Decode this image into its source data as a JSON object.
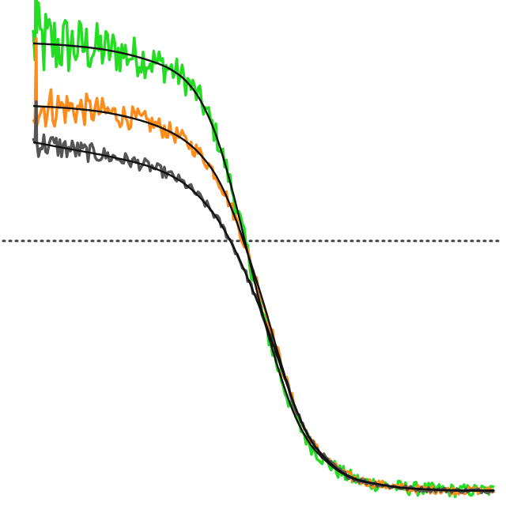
{
  "chart_data": {
    "type": "line",
    "x_scale": "log",
    "xlim": [
      -3,
      3
    ],
    "ylim": [
      -0.05,
      1.0
    ],
    "grid": false,
    "axes_visible": false,
    "reference_line": {
      "y": 0.5,
      "style": "dotted",
      "color": "#444444"
    },
    "series": [
      {
        "color": "#22dd22",
        "fit_color": "#111111",
        "noise": 0.035,
        "x": [
          -3.0,
          -2.5,
          -2.0,
          -1.5,
          -1.2,
          -1.0,
          -0.8,
          -0.6,
          -0.4,
          -0.2,
          0.0,
          0.2,
          0.4,
          0.6,
          0.8,
          1.0,
          1.2,
          1.5,
          1.8,
          2.2,
          2.6,
          3.0
        ],
        "y": [
          0.91,
          0.905,
          0.895,
          0.875,
          0.855,
          0.83,
          0.785,
          0.71,
          0.6,
          0.47,
          0.34,
          0.23,
          0.14,
          0.08,
          0.045,
          0.02,
          0.005,
          -0.005,
          -0.012,
          -0.016,
          -0.018,
          -0.018
        ]
      },
      {
        "color": "#ff8c1a",
        "fit_color": "#111111",
        "noise": 0.02,
        "x": [
          -3.0,
          -2.5,
          -2.0,
          -1.5,
          -1.2,
          -1.0,
          -0.8,
          -0.6,
          -0.4,
          -0.2,
          0.0,
          0.2,
          0.4,
          0.6,
          0.8,
          1.0,
          1.2,
          1.5,
          1.8,
          2.2,
          2.6,
          3.0
        ],
        "y": [
          0.78,
          0.775,
          0.765,
          0.745,
          0.725,
          0.705,
          0.675,
          0.63,
          0.56,
          0.47,
          0.37,
          0.26,
          0.16,
          0.09,
          0.05,
          0.022,
          0.006,
          -0.005,
          -0.012,
          -0.016,
          -0.018,
          -0.018
        ]
      },
      {
        "color": "#555555",
        "fit_color": "#111111",
        "noise": 0.012,
        "x": [
          -3.0,
          -2.5,
          -2.0,
          -1.5,
          -1.2,
          -1.0,
          -0.8,
          -0.6,
          -0.4,
          -0.2,
          0.0,
          0.2,
          0.4,
          0.6,
          0.8,
          1.0,
          1.2,
          1.5,
          1.8,
          2.2,
          2.6,
          3.0
        ],
        "y": [
          0.705,
          0.69,
          0.675,
          0.655,
          0.635,
          0.615,
          0.585,
          0.545,
          0.49,
          0.42,
          0.34,
          0.25,
          0.16,
          0.09,
          0.05,
          0.022,
          0.006,
          -0.005,
          -0.012,
          -0.016,
          -0.018,
          -0.018
        ]
      }
    ]
  }
}
